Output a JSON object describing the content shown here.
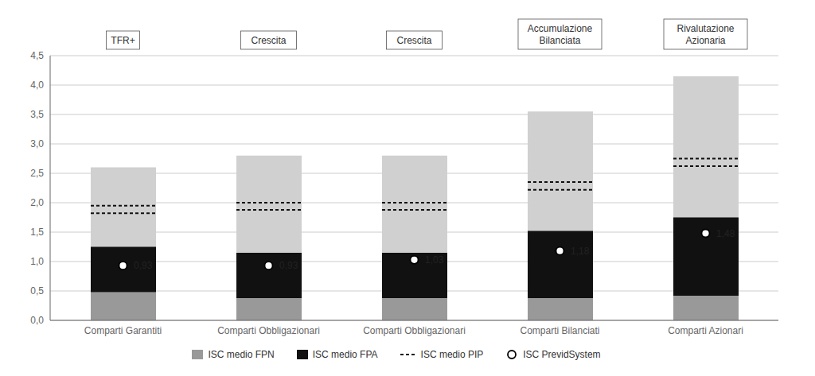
{
  "chart_data": {
    "type": "bar",
    "categories": [
      "Comparti Garantiti",
      "Comparti Obbligazionari",
      "Comparti Obbligazionari",
      "Comparti Bilanciati",
      "Comparti Azionari"
    ],
    "annotations": [
      "TFR+",
      "Crescita",
      "Crescita",
      "Accumulazione\nBilanciata",
      "Rivalutazione\nAzionaria"
    ],
    "series": [
      {
        "type": "bar",
        "color": "#d0d0d0",
        "values": [
          2.6,
          2.8,
          2.8,
          3.55,
          4.15
        ]
      },
      {
        "name": "ISC medio FPN",
        "type": "bar",
        "color": "#999999",
        "values": [
          0.48,
          0.38,
          0.38,
          0.38,
          0.42
        ]
      },
      {
        "name": "ISC medio FPA",
        "type": "range",
        "color": "#111111",
        "values": [
          [
            0.48,
            1.25
          ],
          [
            0.38,
            1.15
          ],
          [
            0.38,
            1.15
          ],
          [
            0.38,
            1.52
          ],
          [
            0.42,
            1.75
          ]
        ]
      },
      {
        "name": "ISC medio PIP",
        "type": "range",
        "line_style": "dotted",
        "color": "#111111",
        "values": [
          [
            1.82,
            1.95
          ],
          [
            1.88,
            2.0
          ],
          [
            1.88,
            2.0
          ],
          [
            2.22,
            2.35
          ],
          [
            2.62,
            2.75
          ]
        ]
      },
      {
        "name": "ISC PrevidSystem",
        "type": "scatter",
        "marker": "circle",
        "color": "#000000",
        "values": [
          0.93,
          0.93,
          1.03,
          1.18,
          1.48
        ],
        "value_labels": [
          "0,93",
          "0,93",
          "1,03",
          "1,18",
          "1,48"
        ]
      }
    ],
    "ylim": [
      0.0,
      4.5
    ],
    "yticks": [
      {
        "value": 0.0,
        "label": "0,0"
      },
      {
        "value": 0.5,
        "label": "0,5"
      },
      {
        "value": 1.0,
        "label": "1,0"
      },
      {
        "value": 1.5,
        "label": "1,5"
      },
      {
        "value": 2.0,
        "label": "2,0"
      },
      {
        "value": 2.5,
        "label": "2,5"
      },
      {
        "value": 3.0,
        "label": "3,0"
      },
      {
        "value": 3.5,
        "label": "3,5"
      },
      {
        "value": 4.0,
        "label": "4,0"
      },
      {
        "value": 4.5,
        "label": "4,5"
      }
    ],
    "grid": true,
    "legend": "bottom",
    "data_labels": true
  }
}
